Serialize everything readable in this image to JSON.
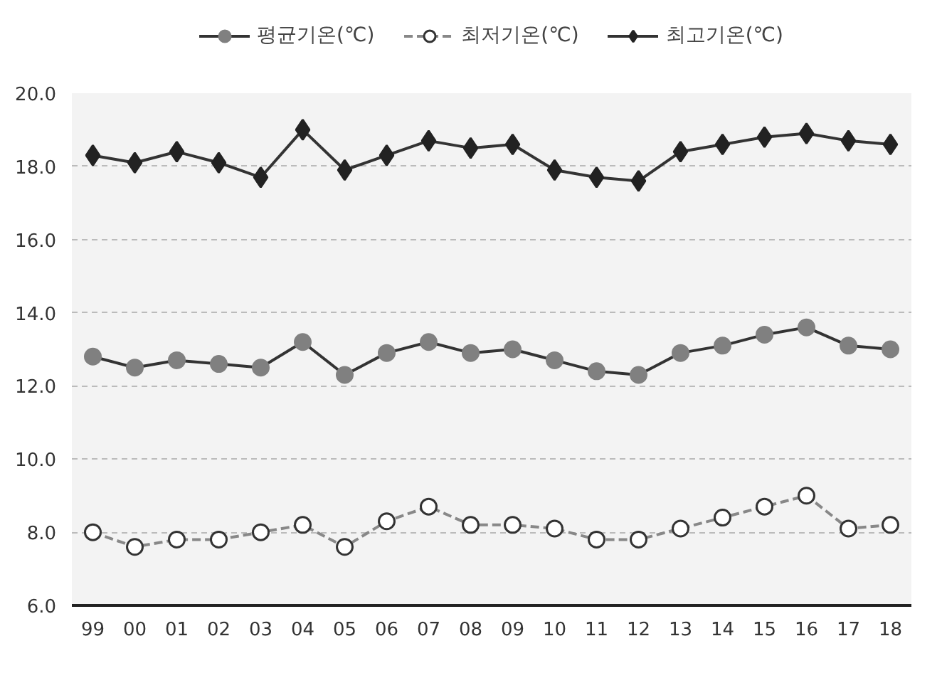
{
  "chart_data": {
    "type": "line",
    "categories": [
      "99",
      "00",
      "01",
      "02",
      "03",
      "04",
      "05",
      "06",
      "07",
      "08",
      "09",
      "10",
      "11",
      "12",
      "13",
      "14",
      "15",
      "16",
      "17",
      "18"
    ],
    "series": [
      {
        "name": "평균기온(℃)",
        "color": "#808080",
        "marker": "circle",
        "line_style": "solid",
        "values": [
          12.8,
          12.5,
          12.7,
          12.6,
          12.5,
          13.2,
          12.3,
          12.9,
          13.2,
          12.9,
          13.0,
          12.7,
          12.4,
          12.3,
          12.9,
          13.1,
          13.4,
          13.6,
          13.1,
          13.0
        ]
      },
      {
        "name": "최저기온(℃)",
        "color": "#ffffff",
        "marker": "circle",
        "line_style": "dashed",
        "values": [
          8.0,
          7.6,
          7.8,
          7.8,
          8.0,
          8.2,
          7.6,
          8.3,
          8.7,
          8.2,
          8.2,
          8.1,
          7.8,
          7.8,
          8.1,
          8.4,
          8.7,
          9.0,
          8.1,
          8.2
        ]
      },
      {
        "name": "최고기온(℃)",
        "color": "#222222",
        "marker": "diamond",
        "line_style": "solid",
        "values": [
          18.3,
          18.1,
          18.4,
          18.1,
          17.7,
          19.0,
          17.9,
          18.3,
          18.7,
          18.5,
          18.6,
          17.9,
          17.7,
          17.6,
          18.4,
          18.6,
          18.8,
          18.9,
          18.7,
          18.6
        ]
      }
    ],
    "ylim": [
      6.0,
      20.0
    ],
    "yticks": [
      {
        "value": 6,
        "label": "6.0"
      },
      {
        "value": 8,
        "label": "8.0"
      },
      {
        "value": 10,
        "label": "10.0"
      },
      {
        "value": 12,
        "label": "12.0"
      },
      {
        "value": 14,
        "label": "14.0"
      },
      {
        "value": 16,
        "label": "16.0"
      },
      {
        "value": 18,
        "label": "18.0"
      },
      {
        "value": 20,
        "label": "20.0"
      }
    ],
    "grid": "y",
    "legend": "top"
  }
}
